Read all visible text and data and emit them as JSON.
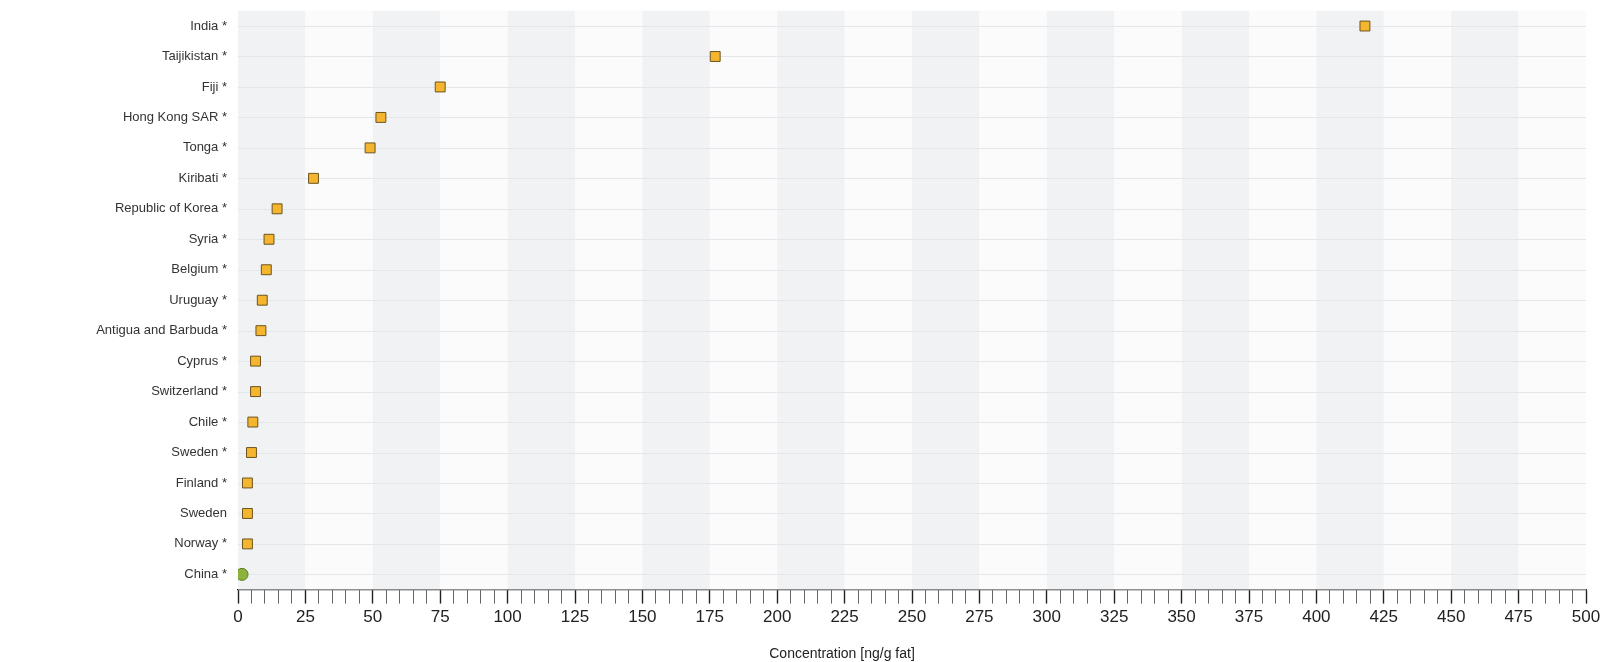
{
  "chart_data": {
    "type": "scatter",
    "orientation": "horizontal",
    "xlabel": "Concentration [ng/g fat]",
    "categories": [
      "India *",
      "Taijikistan *",
      "Fiji *",
      "Hong Kong SAR *",
      "Tonga *",
      "Kiribati *",
      "Republic of Korea *",
      "Syria *",
      "Belgium *",
      "Uruguay *",
      "Antigua and Barbuda *",
      "Cyprus *",
      "Switzerland *",
      "Chile *",
      "Sweden *",
      "Finland *",
      "Sweden",
      "Norway *",
      "China *"
    ],
    "series": [
      {
        "color": "#f5b52e",
        "marker": "square",
        "values": [
          418,
          177,
          75,
          53,
          49,
          28,
          14.5,
          11.5,
          10.5,
          9,
          8.5,
          6.5,
          6.5,
          5.5,
          5,
          3.5,
          3.5,
          3.5,
          null
        ]
      },
      {
        "color": "#8cb43a",
        "marker": "circle",
        "values": [
          null,
          null,
          null,
          null,
          null,
          null,
          null,
          null,
          null,
          null,
          null,
          null,
          null,
          null,
          null,
          null,
          null,
          null,
          1.5
        ]
      }
    ],
    "xlim": [
      0,
      500
    ],
    "xticks": [
      0,
      {
        "value": 5,
        "label": null
      },
      {
        "value": 10,
        "label": null
      },
      {
        "value": 15,
        "label": null
      },
      {
        "value": 20,
        "label": null
      },
      25,
      {
        "value": 30,
        "label": null
      },
      {
        "value": 35,
        "label": null
      },
      {
        "value": 40,
        "label": null
      },
      {
        "value": 45,
        "label": null
      },
      50,
      {
        "value": 55,
        "label": null
      },
      {
        "value": 60,
        "label": null
      },
      {
        "value": 65,
        "label": null
      },
      {
        "value": 70,
        "label": null
      },
      75,
      {
        "value": 80,
        "label": null
      },
      {
        "value": 85,
        "label": null
      },
      {
        "value": 90,
        "label": null
      },
      {
        "value": 95,
        "label": null
      },
      100,
      {
        "value": 105,
        "label": null
      },
      {
        "value": 110,
        "label": null
      },
      {
        "value": 115,
        "label": null
      },
      {
        "value": 120,
        "label": null
      },
      125,
      {
        "value": 130,
        "label": null
      },
      {
        "value": 135,
        "label": null
      },
      {
        "value": 140,
        "label": null
      },
      {
        "value": 145,
        "label": null
      },
      150,
      {
        "value": 155,
        "label": null
      },
      {
        "value": 160,
        "label": null
      },
      {
        "value": 165,
        "label": null
      },
      {
        "value": 170,
        "label": null
      },
      175,
      {
        "value": 180,
        "label": null
      },
      {
        "value": 185,
        "label": null
      },
      {
        "value": 190,
        "label": null
      },
      {
        "value": 195,
        "label": null
      },
      200,
      {
        "value": 205,
        "label": null
      },
      {
        "value": 210,
        "label": null
      },
      {
        "value": 215,
        "label": null
      },
      {
        "value": 220,
        "label": null
      },
      225,
      {
        "value": 230,
        "label": null
      },
      {
        "value": 235,
        "label": null
      },
      {
        "value": 240,
        "label": null
      },
      {
        "value": 245,
        "label": null
      },
      250,
      {
        "value": 255,
        "label": null
      },
      {
        "value": 260,
        "label": null
      },
      {
        "value": 265,
        "label": null
      },
      {
        "value": 270,
        "label": null
      },
      275,
      {
        "value": 280,
        "label": null
      },
      {
        "value": 285,
        "label": null
      },
      {
        "value": 290,
        "label": null
      },
      {
        "value": 295,
        "label": null
      },
      300,
      {
        "value": 305,
        "label": null
      },
      {
        "value": 310,
        "label": null
      },
      {
        "value": 315,
        "label": null
      },
      {
        "value": 320,
        "label": null
      },
      325,
      {
        "value": 330,
        "label": null
      },
      {
        "value": 335,
        "label": null
      },
      {
        "value": 340,
        "label": null
      },
      {
        "value": 345,
        "label": null
      },
      350,
      {
        "value": 355,
        "label": null
      },
      {
        "value": 360,
        "label": null
      },
      {
        "value": 365,
        "label": null
      },
      {
        "value": 370,
        "label": null
      },
      375,
      {
        "value": 380,
        "label": null
      },
      {
        "value": 385,
        "label": null
      },
      {
        "value": 390,
        "label": null
      },
      {
        "value": 395,
        "label": null
      },
      400,
      {
        "value": 405,
        "label": null
      },
      {
        "value": 410,
        "label": null
      },
      {
        "value": 415,
        "label": null
      },
      {
        "value": 420,
        "label": null
      },
      425,
      {
        "value": 430,
        "label": null
      },
      {
        "value": 435,
        "label": null
      },
      {
        "value": 440,
        "label": null
      },
      {
        "value": 445,
        "label": null
      },
      450,
      {
        "value": 455,
        "label": null
      },
      {
        "value": 460,
        "label": null
      },
      {
        "value": 465,
        "label": null
      },
      {
        "value": 470,
        "label": null
      },
      475,
      {
        "value": 480,
        "label": null
      },
      {
        "value": 485,
        "label": null
      },
      {
        "value": 490,
        "label": null
      },
      {
        "value": 495,
        "label": null
      },
      500
    ],
    "grid": true,
    "legend": false
  }
}
